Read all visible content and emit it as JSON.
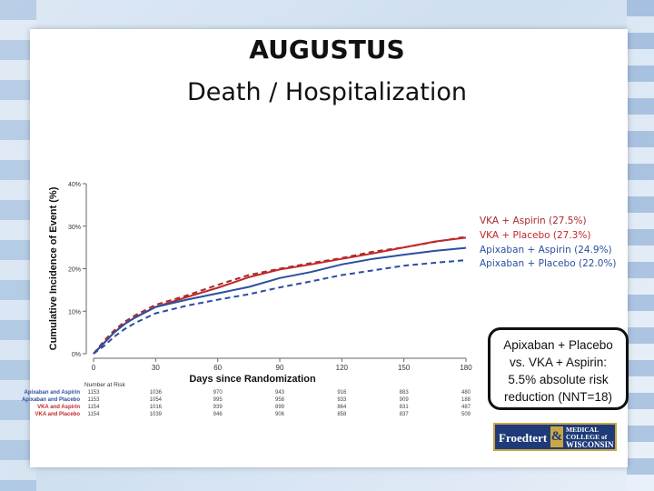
{
  "slide": {
    "title": "AUGUSTUS",
    "subtitle": "Death / Hospitalization"
  },
  "callout": {
    "line1": "Apixaban + Placebo",
    "line2": "vs. VKA + Aspirin:",
    "line3": "5.5% absolute risk",
    "line4": "reduction (NNT=18)"
  },
  "logo": {
    "left": "Froedtert",
    "amp": "&",
    "right1": "MEDICAL",
    "right2": "COLLEGE of",
    "right3": "WISCONSIN"
  },
  "chart_data": {
    "type": "line",
    "xlabel": "Days since Randomization",
    "ylabel": "Cumulative Incidence of Event (%)",
    "xlim": [
      0,
      180
    ],
    "ylim": [
      0,
      40
    ],
    "xticks": [
      0,
      30,
      60,
      90,
      120,
      150,
      180
    ],
    "yticks": [
      0,
      10,
      20,
      30,
      40
    ],
    "ytick_labels": [
      "0%",
      "10%",
      "20%",
      "30%",
      "40%"
    ],
    "grid": false,
    "legend_position": "right",
    "series": [
      {
        "name": "VKA + Aspirin (27.5%)",
        "color": "#a8292a",
        "dash": true,
        "x": [
          0,
          5,
          10,
          15,
          20,
          30,
          45,
          60,
          75,
          90,
          105,
          120,
          135,
          150,
          165,
          180
        ],
        "y": [
          0,
          3,
          5.5,
          7.5,
          9,
          11.5,
          13.7,
          16.2,
          18.5,
          20,
          21.3,
          22.5,
          24,
          25,
          26.3,
          27.5
        ]
      },
      {
        "name": "VKA + Placebo (27.3%)",
        "color": "#c0282b",
        "dash": false,
        "x": [
          0,
          5,
          10,
          15,
          20,
          30,
          45,
          60,
          75,
          90,
          105,
          120,
          135,
          150,
          165,
          180
        ],
        "y": [
          0,
          2.5,
          5,
          7,
          8.5,
          11,
          13.3,
          15.5,
          18,
          19.8,
          21,
          22.3,
          23.6,
          25,
          26.4,
          27.3
        ]
      },
      {
        "name": "Apixaban + Aspirin (24.9%)",
        "color": "#2a4fa0",
        "dash": false,
        "x": [
          0,
          5,
          10,
          15,
          20,
          30,
          45,
          60,
          75,
          90,
          105,
          120,
          135,
          150,
          165,
          180
        ],
        "y": [
          0,
          2.5,
          5,
          7,
          8.5,
          11,
          12.7,
          14.2,
          15.7,
          17.8,
          19.2,
          21,
          22.3,
          23.3,
          24.2,
          24.9
        ]
      },
      {
        "name": "Apixaban + Placebo (22.0%)",
        "color": "#2a4fa0",
        "dash": true,
        "x": [
          0,
          5,
          10,
          15,
          20,
          30,
          45,
          60,
          75,
          90,
          105,
          120,
          135,
          150,
          165,
          180
        ],
        "y": [
          0,
          1.8,
          4,
          5.8,
          7.2,
          9.5,
          11.3,
          12.7,
          14,
          15.6,
          17,
          18.5,
          19.6,
          20.7,
          21.4,
          22
        ]
      }
    ],
    "at_risk": {
      "header": "Number at Risk",
      "rows": [
        {
          "label": "Apixaban and Aspirin",
          "color": "#2a4fa0",
          "values": [
            "1153",
            "1036",
            "970",
            "943",
            "916",
            "883",
            "480"
          ]
        },
        {
          "label": "Apixaban and Placebo",
          "color": "#2a4fa0",
          "values": [
            "1153",
            "1054",
            "995",
            "958",
            "933",
            "909",
            "188"
          ]
        },
        {
          "label": "VKA and Aspirin",
          "color": "#c0282b",
          "values": [
            "1154",
            "1016",
            "939",
            "899",
            "864",
            "831",
            "487"
          ]
        },
        {
          "label": "VKA and Placebo",
          "color": "#c0282b",
          "values": [
            "1154",
            "1039",
            "946",
            "906",
            "858",
            "837",
            "509"
          ]
        }
      ]
    }
  }
}
